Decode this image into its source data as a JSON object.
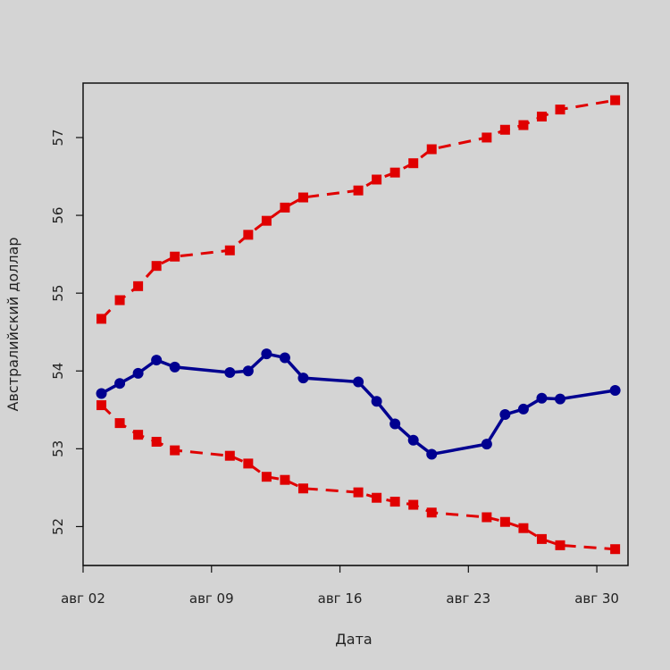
{
  "chart_data": {
    "type": "line",
    "title": "",
    "xlabel": "Дата",
    "ylabel": "Австралийский доллар",
    "x_ticks": [
      {
        "day": 2,
        "label": "авг 02"
      },
      {
        "day": 9,
        "label": "авг 09"
      },
      {
        "day": 16,
        "label": "авг 16"
      },
      {
        "day": 23,
        "label": "авг 23"
      },
      {
        "day": 30,
        "label": "авг 30"
      }
    ],
    "y_ticks": [
      {
        "value": 52,
        "label": "52"
      },
      {
        "value": 53,
        "label": "53"
      },
      {
        "value": 54,
        "label": "54"
      },
      {
        "value": 55,
        "label": "55"
      },
      {
        "value": 56,
        "label": "56"
      },
      {
        "value": 57,
        "label": "57"
      }
    ],
    "xlim": [
      2,
      31.7
    ],
    "ylim": [
      51.5,
      57.7
    ],
    "grid": false,
    "series": [
      {
        "name": "",
        "color": "#e00000",
        "style": "dashed",
        "marker": "square",
        "x": [
          3,
          4,
          5,
          6,
          7,
          10,
          11,
          12,
          13,
          14,
          17,
          18,
          19,
          20,
          21,
          24,
          25,
          26,
          27,
          28,
          31
        ],
        "y": [
          54.67,
          54.91,
          55.09,
          55.35,
          55.47,
          55.55,
          55.75,
          55.93,
          56.1,
          56.23,
          56.32,
          56.46,
          56.55,
          56.67,
          56.85,
          57.0,
          57.1,
          57.16,
          57.27,
          57.36,
          57.48
        ]
      },
      {
        "name": "",
        "color": "#000090",
        "style": "solid",
        "marker": "circle",
        "x": [
          3,
          4,
          5,
          6,
          7,
          10,
          11,
          12,
          13,
          14,
          17,
          18,
          19,
          20,
          21,
          24,
          25,
          26,
          27,
          28,
          31
        ],
        "y": [
          53.71,
          53.84,
          53.97,
          54.14,
          54.05,
          53.98,
          54.0,
          54.22,
          54.17,
          53.91,
          53.86,
          53.61,
          53.32,
          53.11,
          52.93,
          53.06,
          53.44,
          53.51,
          53.65,
          53.64,
          53.75
        ]
      },
      {
        "name": "",
        "color": "#e00000",
        "style": "dashed",
        "marker": "square",
        "x": [
          3,
          4,
          5,
          6,
          7,
          10,
          11,
          12,
          13,
          14,
          17,
          18,
          19,
          20,
          21,
          24,
          25,
          26,
          27,
          28,
          31
        ],
        "y": [
          53.56,
          53.33,
          53.18,
          53.09,
          52.98,
          52.91,
          52.81,
          52.64,
          52.6,
          52.49,
          52.44,
          52.37,
          52.32,
          52.28,
          52.18,
          52.12,
          52.06,
          51.98,
          51.84,
          51.76,
          51.71
        ]
      }
    ]
  }
}
